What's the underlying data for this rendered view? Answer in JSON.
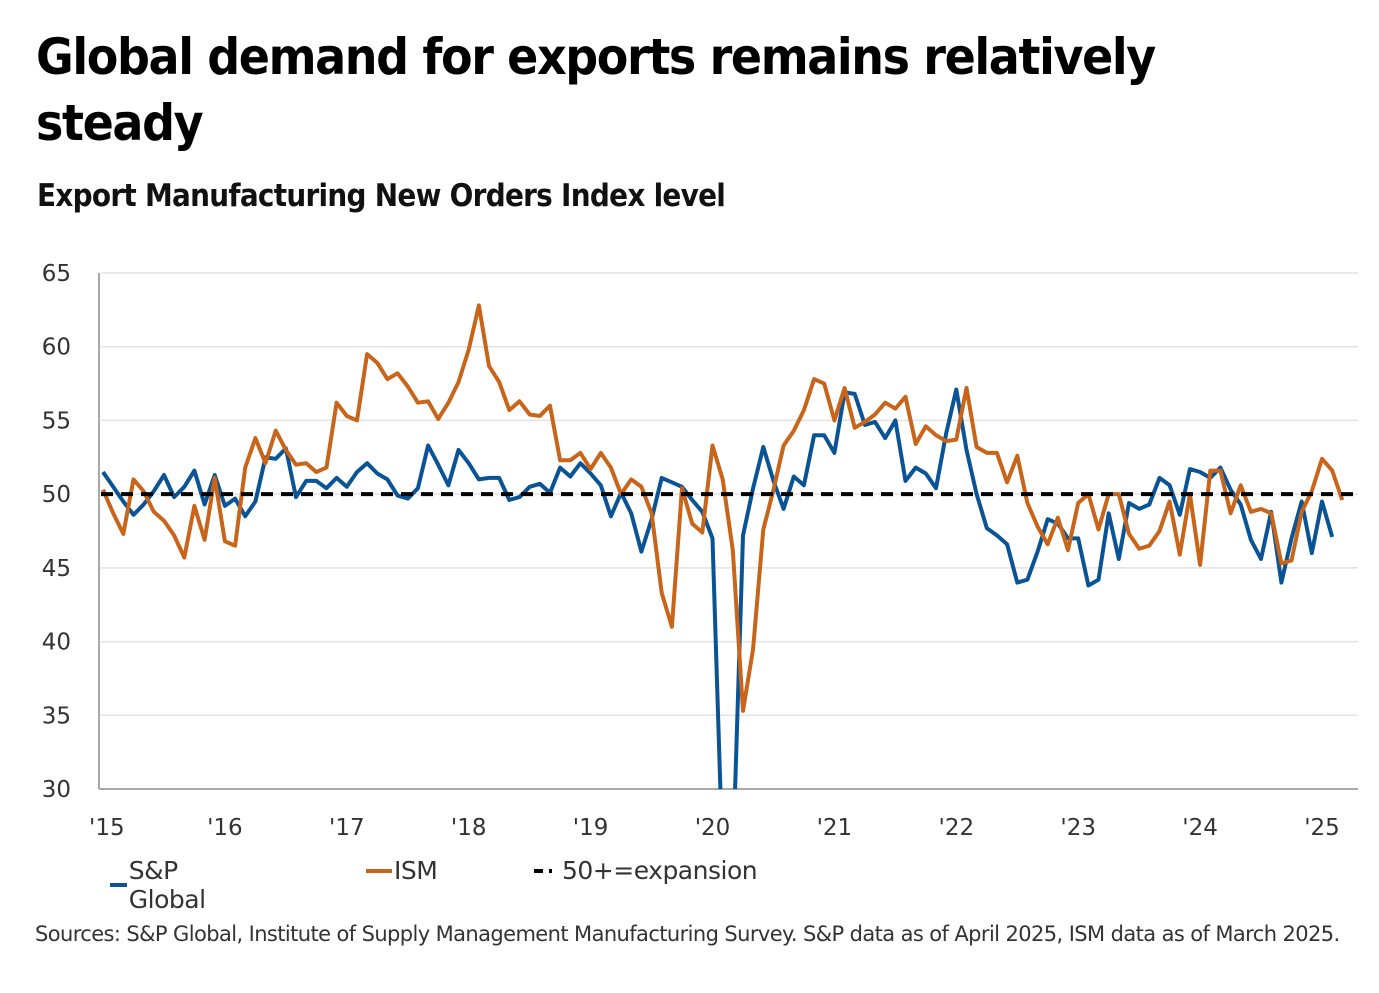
{
  "title": "Global demand for exports remains relatively steady",
  "subtitle": "Export Manufacturing New Orders Index level",
  "source": "Sources: S&P Global, Institute of Supply Management Manufacturing Survey. S&P data as of April 2025, ISM data as of March 2025.",
  "legend": [
    {
      "label": "S&P Global",
      "color": "#0a5496",
      "style": "solid"
    },
    {
      "label": "ISM",
      "color": "#c8651b",
      "style": "solid"
    },
    {
      "label": "50+=expansion",
      "color": "#000000",
      "style": "dashed"
    }
  ],
  "chart_data": {
    "type": "line",
    "title": "Global demand for exports remains relatively steady",
    "subtitle": "Export Manufacturing New Orders Index level",
    "xlabel": "",
    "ylabel": "",
    "ylim": [
      30,
      65
    ],
    "yticks": [
      30,
      35,
      40,
      45,
      50,
      55,
      60,
      65
    ],
    "ytick_labels": [
      "30",
      "35",
      "40",
      "45",
      "50",
      "55",
      "60",
      "65"
    ],
    "x_start": "2015-01",
    "x_end": "2025-04",
    "frequency": "monthly",
    "xticks": [
      "'15",
      "'16",
      "'17",
      "'18",
      "'19",
      "'20",
      "'21",
      "'22",
      "'23",
      "'24",
      "'25"
    ],
    "grid": true,
    "legend_position": "bottom-left",
    "reference_line": {
      "label": "50+=expansion",
      "value": 50,
      "color": "#000000",
      "style": "dashed"
    },
    "series": [
      {
        "name": "S&P Global",
        "color": "#0a5496",
        "start": "2015-01",
        "values": [
          51.5,
          50.5,
          49.5,
          48.6,
          49.3,
          50.2,
          51.3,
          49.8,
          50.5,
          51.6,
          49.3,
          51.3,
          49.2,
          49.7,
          48.5,
          49.5,
          52.5,
          52.4,
          53.1,
          49.8,
          50.9,
          50.9,
          50.4,
          51.1,
          50.5,
          51.5,
          52.1,
          51.4,
          51.0,
          49.9,
          49.7,
          50.4,
          53.3,
          52.0,
          50.6,
          53.0,
          52.1,
          51.0,
          51.1,
          51.1,
          49.6,
          49.8,
          50.5,
          50.7,
          50.1,
          51.8,
          51.2,
          52.1,
          51.4,
          50.6,
          48.5,
          50.1,
          48.7,
          46.1,
          48.3,
          51.1,
          50.8,
          50.5,
          49.6,
          48.8,
          47.0,
          25.0,
          25.0,
          47.2,
          50.4,
          53.2,
          50.9,
          49.0,
          51.2,
          50.6,
          54.0,
          54.0,
          52.8,
          56.9,
          56.8,
          54.7,
          54.9,
          53.8,
          55.0,
          50.9,
          51.8,
          51.4,
          50.4,
          54.1,
          57.1,
          53.0,
          50.0,
          47.7,
          47.2,
          46.6,
          44.0,
          44.2,
          46.1,
          48.3,
          48.0,
          47.0,
          47.0,
          43.8,
          44.2,
          48.7,
          45.6,
          49.4,
          49.0,
          49.3,
          51.1,
          50.6,
          48.6,
          51.7,
          51.5,
          51.1,
          51.8,
          50.3,
          49.3,
          46.9,
          45.6,
          48.8,
          44.0,
          47.0,
          49.5,
          46.0,
          49.5,
          47.1
        ]
      },
      {
        "name": "ISM",
        "color": "#c8651b",
        "start": "2015-01",
        "values": [
          50.3,
          48.7,
          47.3,
          51.0,
          50.2,
          48.8,
          48.2,
          47.2,
          45.7,
          49.2,
          46.9,
          51.1,
          46.8,
          46.5,
          51.8,
          53.8,
          52.1,
          54.3,
          53.0,
          52.0,
          52.1,
          51.5,
          51.8,
          56.2,
          55.3,
          55.0,
          59.5,
          58.9,
          57.8,
          58.2,
          57.3,
          56.2,
          56.3,
          55.1,
          56.2,
          57.6,
          59.8,
          62.8,
          58.7,
          57.6,
          55.7,
          56.3,
          55.4,
          55.3,
          56.0,
          52.3,
          52.3,
          52.8,
          51.7,
          52.8,
          51.8,
          50.0,
          51.0,
          50.5,
          48.7,
          43.3,
          41.0,
          50.4,
          48.0,
          47.4,
          53.3,
          51.0,
          46.2,
          35.3,
          39.5,
          47.6,
          50.3,
          53.3,
          54.3,
          55.7,
          57.8,
          57.5,
          55.0,
          57.2,
          54.5,
          54.9,
          55.4,
          56.2,
          55.8,
          56.6,
          53.4,
          54.6,
          54.0,
          53.6,
          53.7,
          57.2,
          53.2,
          52.8,
          52.8,
          50.8,
          52.6,
          49.4,
          47.8,
          46.6,
          48.4,
          46.2,
          49.4,
          50.0,
          47.6,
          50.0,
          50.0,
          47.3,
          46.3,
          46.5,
          47.5,
          49.5,
          45.9,
          50.0,
          45.2,
          51.6,
          51.6,
          48.7,
          50.6,
          48.8,
          49.0,
          48.7,
          45.3,
          45.5,
          48.8,
          50.2,
          52.4,
          51.6,
          49.6
        ]
      }
    ]
  }
}
